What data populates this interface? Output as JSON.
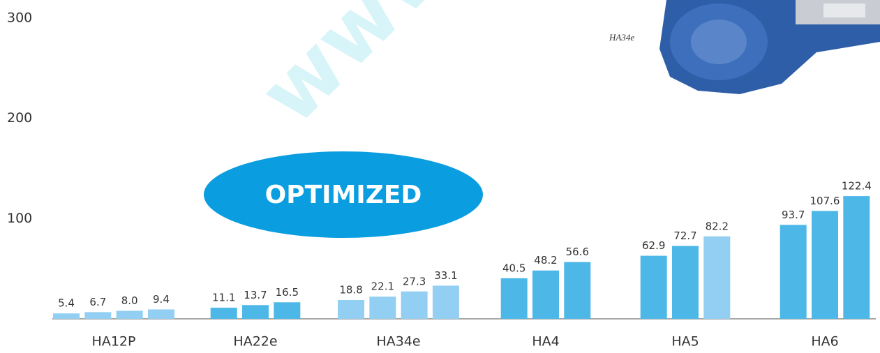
{
  "chart_data": {
    "type": "grouped-bar",
    "groups": [
      {
        "category": "HA12P",
        "values": [
          5.4,
          6.7,
          8.0,
          9.4
        ],
        "value_labels": [
          "5.4",
          "6.7",
          "8.0",
          "9.4"
        ],
        "colors": [
          "#93cff2",
          "#93cff2",
          "#93cff2",
          "#93cff2"
        ]
      },
      {
        "category": "HA22e",
        "values": [
          11.1,
          13.7,
          16.5
        ],
        "colors": [
          "#4db8e8",
          "#4db8e8",
          "#4db8e8"
        ]
      },
      {
        "category": "HA34e",
        "values": [
          18.8,
          22.1,
          27.3,
          33.1
        ],
        "colors": [
          "#93cff2",
          "#93cff2",
          "#93cff2",
          "#93cff2"
        ]
      },
      {
        "category": "HA4",
        "values": [
          40.5,
          48.2,
          56.6
        ],
        "colors": [
          "#4db8e8",
          "#4db8e8",
          "#4db8e8"
        ]
      },
      {
        "category": "HA5",
        "values": [
          62.9,
          72.7,
          82.2
        ],
        "colors": [
          "#4db8e8",
          "#4db8e8",
          "#93cff2"
        ]
      },
      {
        "category": "HA6",
        "values": [
          93.7,
          107.6,
          122.4
        ],
        "colors": [
          "#4db8e8",
          "#4db8e8",
          "#4db8e8"
        ]
      }
    ],
    "ylim": [
      0,
      318
    ],
    "yticks": [
      100,
      200,
      300
    ],
    "annotations": {
      "badge": "OPTIMIZED",
      "photo_caption": "HA34e",
      "watermark": "www.prolod.c"
    }
  }
}
